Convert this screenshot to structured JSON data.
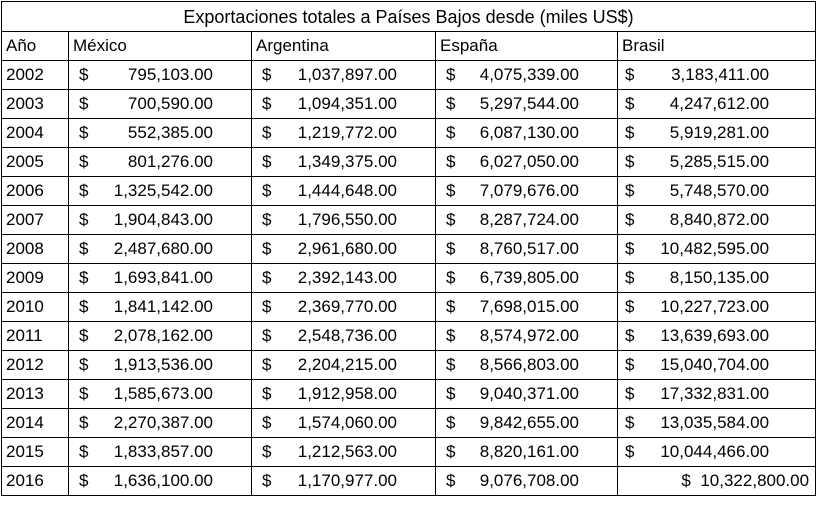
{
  "title": "Exportaciones totales a Países Bajos desde (miles US$)",
  "headers": [
    "Año",
    "México",
    "Argentina",
    "España",
    "Brasil"
  ],
  "currency_symbol": "$",
  "rows": [
    {
      "year": "2002",
      "mexico": "795,103.00",
      "argentina": "1,037,897.00",
      "espana": "4,075,339.00",
      "brasil": "3,183,411.00"
    },
    {
      "year": "2003",
      "mexico": "700,590.00",
      "argentina": "1,094,351.00",
      "espana": "5,297,544.00",
      "brasil": "4,247,612.00"
    },
    {
      "year": "2004",
      "mexico": "552,385.00",
      "argentina": "1,219,772.00",
      "espana": "6,087,130.00",
      "brasil": "5,919,281.00"
    },
    {
      "year": "2005",
      "mexico": "801,276.00",
      "argentina": "1,349,375.00",
      "espana": "6,027,050.00",
      "brasil": "5,285,515.00"
    },
    {
      "year": "2006",
      "mexico": "1,325,542.00",
      "argentina": "1,444,648.00",
      "espana": "7,079,676.00",
      "brasil": "5,748,570.00"
    },
    {
      "year": "2007",
      "mexico": "1,904,843.00",
      "argentina": "1,796,550.00",
      "espana": "8,287,724.00",
      "brasil": "8,840,872.00"
    },
    {
      "year": "2008",
      "mexico": "2,487,680.00",
      "argentina": "2,961,680.00",
      "espana": "8,760,517.00",
      "brasil": "10,482,595.00"
    },
    {
      "year": "2009",
      "mexico": "1,693,841.00",
      "argentina": "2,392,143.00",
      "espana": "6,739,805.00",
      "brasil": "8,150,135.00"
    },
    {
      "year": "2010",
      "mexico": "1,841,142.00",
      "argentina": "2,369,770.00",
      "espana": "7,698,015.00",
      "brasil": "10,227,723.00"
    },
    {
      "year": "2011",
      "mexico": "2,078,162.00",
      "argentina": "2,548,736.00",
      "espana": "8,574,972.00",
      "brasil": "13,639,693.00"
    },
    {
      "year": "2012",
      "mexico": "1,913,536.00",
      "argentina": "2,204,215.00",
      "espana": "8,566,803.00",
      "brasil": "15,040,704.00"
    },
    {
      "year": "2013",
      "mexico": "1,585,673.00",
      "argentina": "1,912,958.00",
      "espana": "9,040,371.00",
      "brasil": "17,332,831.00"
    },
    {
      "year": "2014",
      "mexico": "2,270,387.00",
      "argentina": "1,574,060.00",
      "espana": "9,842,655.00",
      "brasil": "13,035,584.00"
    },
    {
      "year": "2015",
      "mexico": "1,833,857.00",
      "argentina": "1,212,563.00",
      "espana": "8,820,161.00",
      "brasil": "10,044,466.00"
    },
    {
      "year": "2016",
      "mexico": "1,636,100.00",
      "argentina": "1,170,977.00",
      "espana": "9,076,708.00",
      "brasil": "10,322,800.00"
    }
  ]
}
